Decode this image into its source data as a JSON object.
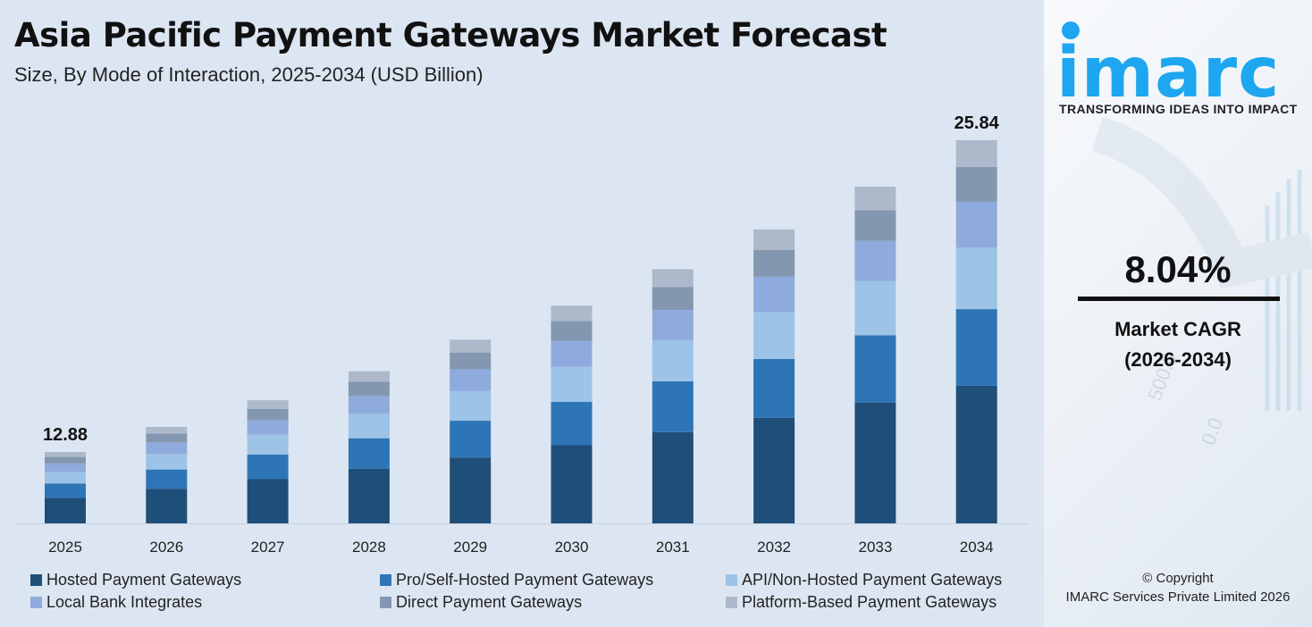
{
  "chart_data": {
    "type": "bar",
    "stacked": true,
    "title": "Asia Pacific Payment Gateways Market Forecast",
    "subtitle": "Size, By Mode of Interaction, 2025-2034 (USD Billion)",
    "xlabel": "",
    "ylabel": "",
    "grid": false,
    "legend_placement": "bottom",
    "categories": [
      "2025",
      "2026",
      "2027",
      "2028",
      "2029",
      "2030",
      "2031",
      "2032",
      "2033",
      "2034"
    ],
    "series": [
      {
        "name": "Hosted Payment Gateways",
        "color": "#1f4e79",
        "values": [
          4.62,
          5.0,
          5.4,
          5.83,
          6.3,
          6.81,
          7.35,
          7.94,
          8.58,
          9.28
        ]
      },
      {
        "name": "Pro/Self-Hosted Payment Gateways",
        "color": "#2e75b6",
        "values": [
          2.58,
          2.78,
          3.01,
          3.25,
          3.51,
          3.79,
          4.1,
          4.43,
          4.78,
          5.17
        ]
      },
      {
        "name": "API/Non-Hosted Payment Gateways",
        "color": "#9dc3e6",
        "values": [
          2.07,
          2.24,
          2.42,
          2.61,
          2.83,
          3.05,
          3.3,
          3.56,
          3.85,
          4.16
        ]
      },
      {
        "name": "Local Bank Integrates",
        "color": "#8faadc",
        "values": [
          1.53,
          1.66,
          1.79,
          1.93,
          2.09,
          2.26,
          2.44,
          2.63,
          2.85,
          3.07
        ]
      },
      {
        "name": "Direct Payment Gateways",
        "color": "#8497b0",
        "values": [
          1.17,
          1.27,
          1.37,
          1.48,
          1.6,
          1.73,
          1.86,
          2.01,
          2.18,
          2.35
        ]
      },
      {
        "name": "Platform-Based Payment Gateways",
        "color": "#adb9ca",
        "values": [
          0.9,
          0.97,
          1.05,
          1.14,
          1.23,
          1.33,
          1.43,
          1.55,
          1.67,
          1.81
        ]
      }
    ],
    "totals": [
      12.88,
      13.92,
      15.03,
      16.24,
      17.55,
      18.96,
      20.48,
      22.13,
      23.91,
      25.84
    ],
    "annotations": [
      {
        "category": "2025",
        "label": "12.88"
      },
      {
        "category": "2034",
        "label": "25.84"
      }
    ]
  },
  "sidebar": {
    "logo_text": "imarc",
    "tagline": "TRANSFORMING IDEAS INTO IMPACT",
    "cagr_value": "8.04%",
    "cagr_label": "Market CAGR",
    "cagr_period": "(2026-2034)",
    "copyright": "© Copyright",
    "company": "IMARC Services Private Limited 2026",
    "brand_color": "#1ea7f0"
  }
}
